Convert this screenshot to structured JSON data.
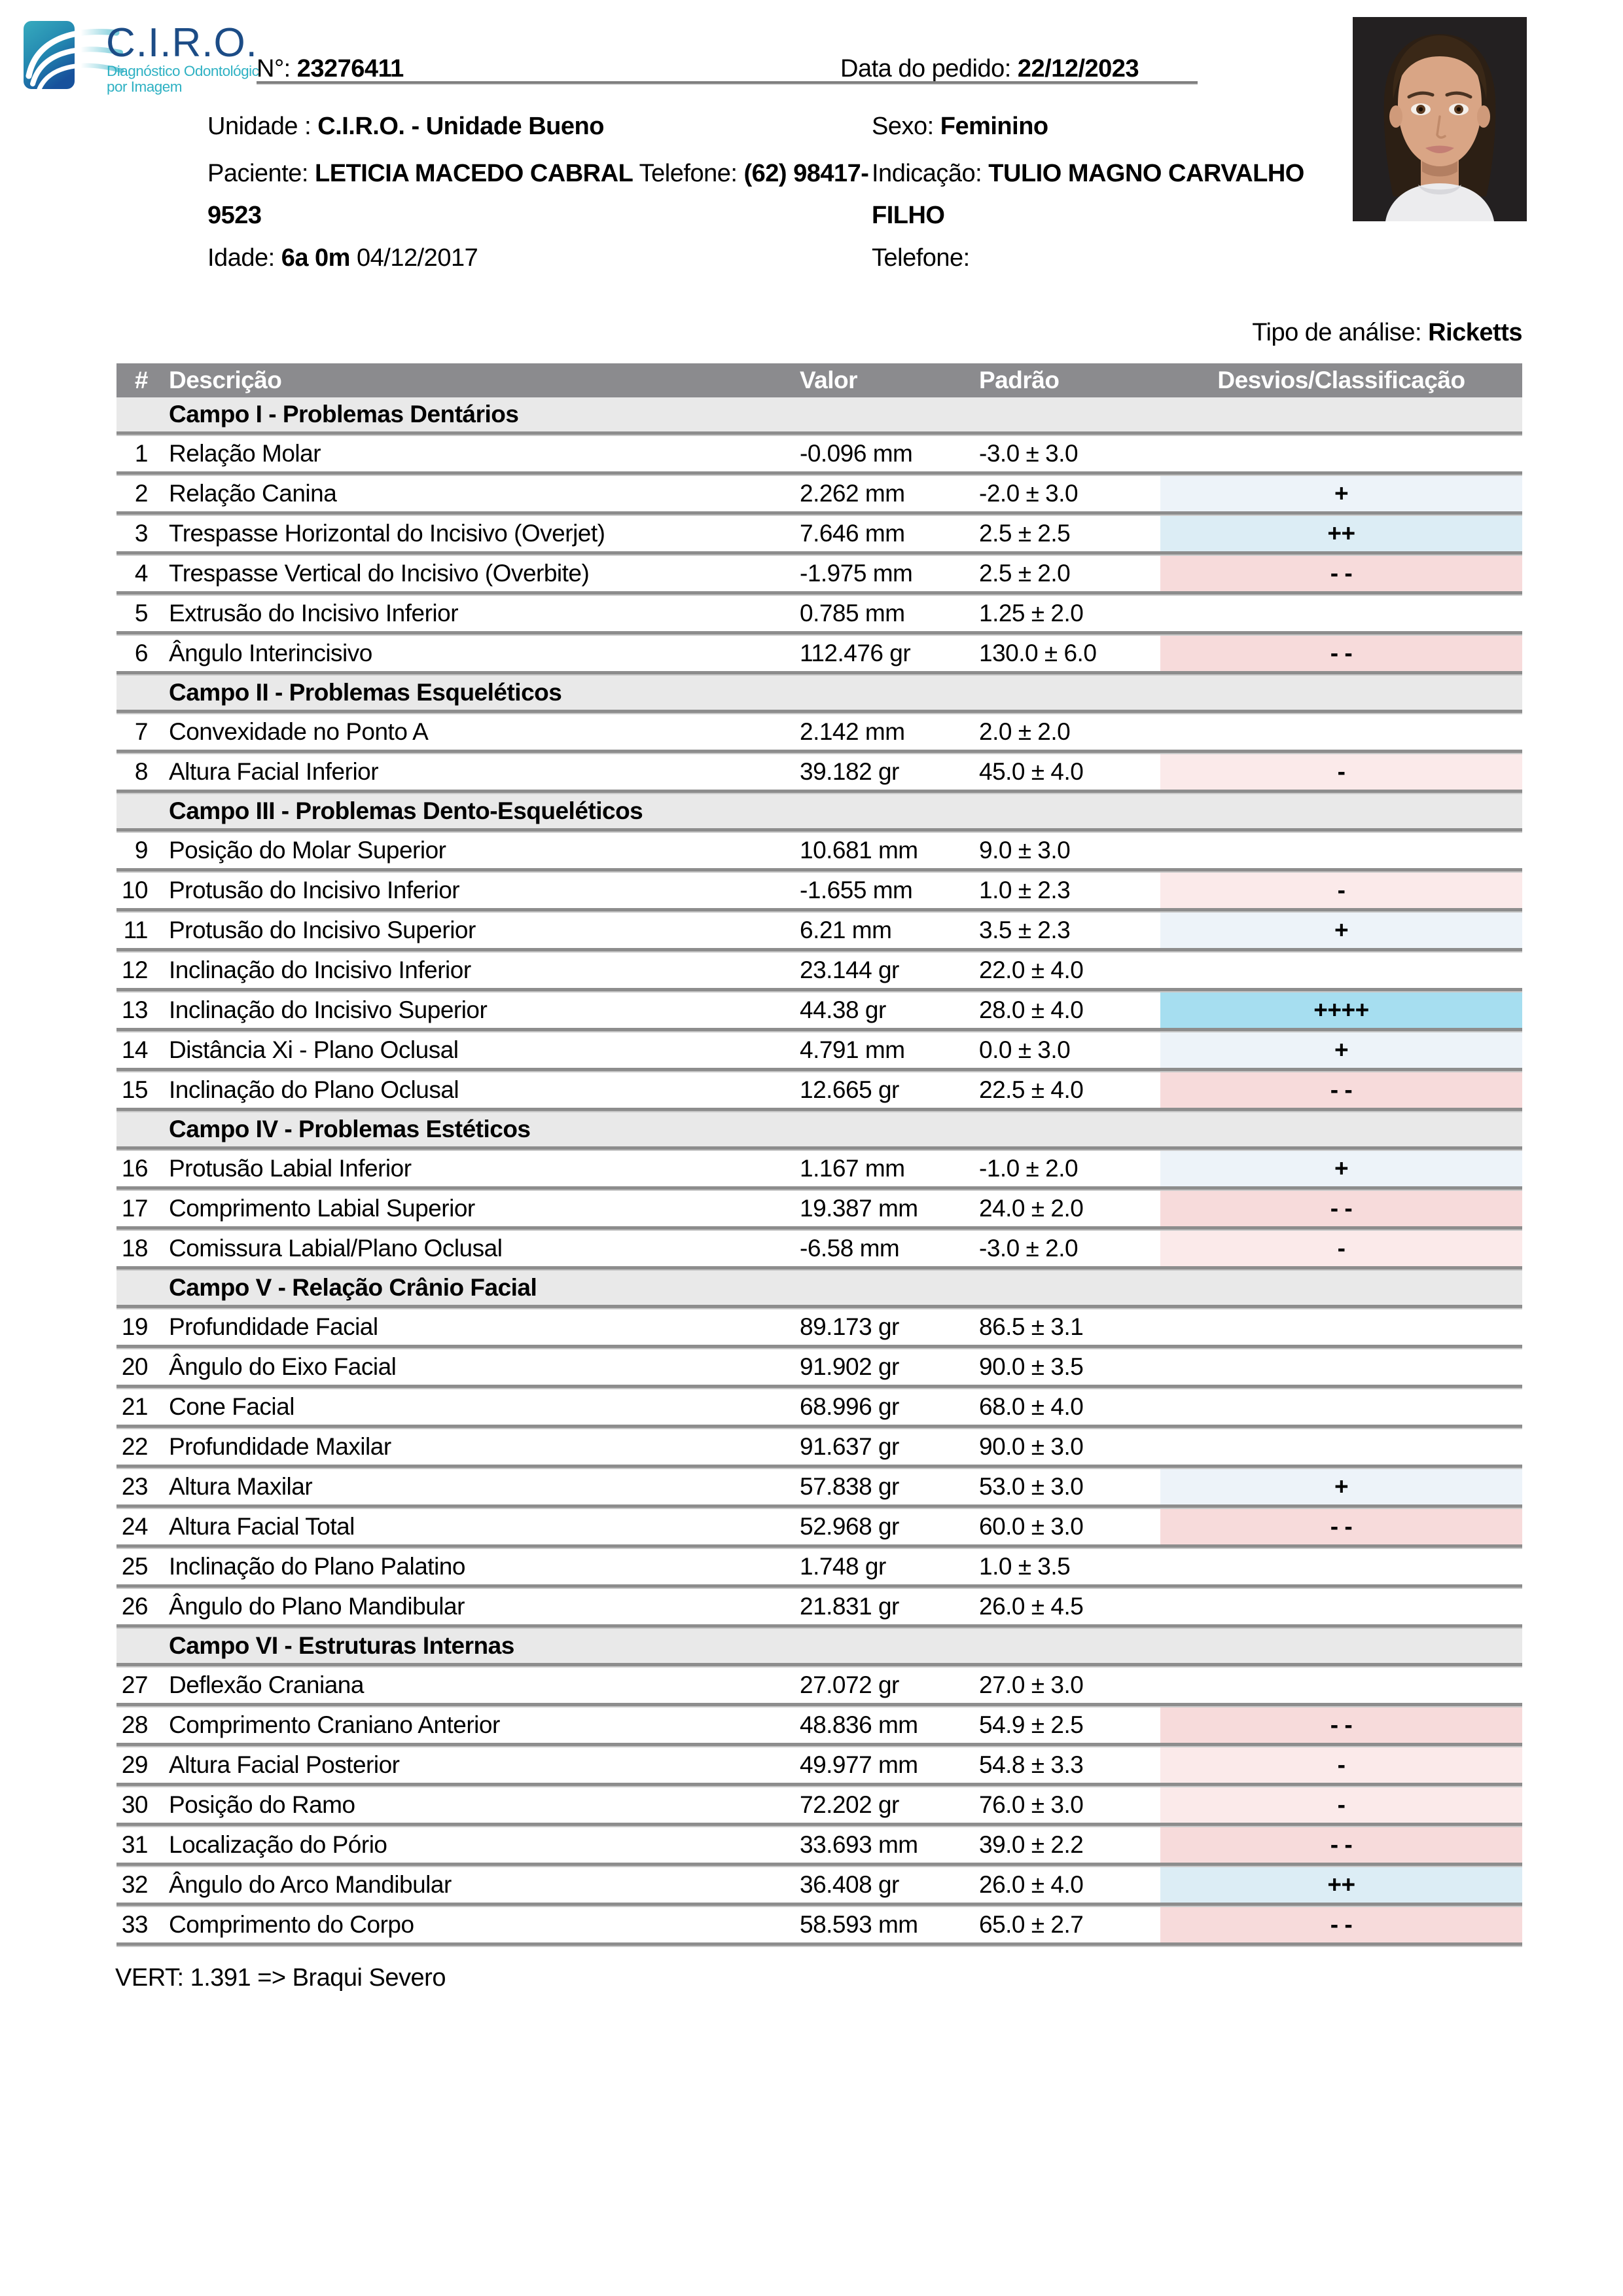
{
  "header": {
    "logo": {
      "brand": "C.I.R.O.",
      "subtitle_line1": "Diagnóstico Odontológico",
      "subtitle_line2": "por Imagem"
    },
    "order_number_label": "N°:",
    "order_number": "23276411",
    "order_date_label": "Data do pedido:",
    "order_date": "22/12/2023"
  },
  "patient": {
    "unit_label": "Unidade :",
    "unit": "C.I.R.O. - Unidade Bueno",
    "sex_label": "Sexo:",
    "sex": "Feminino",
    "name_label": "Paciente:",
    "name": "LETICIA MACEDO CABRAL",
    "phone_label": "Telefone:",
    "phone_part1": "(62) 98417-",
    "phone_part2": "9523",
    "referral_label": "Indicação:",
    "referral_line1": "TULIO MAGNO CARVALHO",
    "referral_line2": "FILHO",
    "age_label": "Idade:",
    "age": "6a 0m",
    "birth_date": "04/12/2017",
    "referral_phone_label": "Telefone:"
  },
  "analysis": {
    "type_label": "Tipo de análise:",
    "type": "Ricketts"
  },
  "table": {
    "columns": [
      "#",
      "Descrição",
      "Valor",
      "Padrão",
      "Desvios/Classificação"
    ],
    "sections": [
      {
        "title": "Campo I - Problemas Dentários",
        "rows": [
          {
            "num": "1",
            "desc": "Relação Molar",
            "valor": "-0.096 mm",
            "padrao": "-3.0 ± 3.0",
            "desvio": ""
          },
          {
            "num": "2",
            "desc": "Relação Canina",
            "valor": "2.262 mm",
            "padrao": "-2.0 ± 3.0",
            "desvio": "+"
          },
          {
            "num": "3",
            "desc": "Trespasse Horizontal do Incisivo (Overjet)",
            "valor": "7.646 mm",
            "padrao": "2.5 ± 2.5",
            "desvio": "++"
          },
          {
            "num": "4",
            "desc": "Trespasse Vertical do Incisivo (Overbite)",
            "valor": "-1.975 mm",
            "padrao": "2.5 ± 2.0",
            "desvio": "- -"
          },
          {
            "num": "5",
            "desc": "Extrusão do Incisivo Inferior",
            "valor": "0.785 mm",
            "padrao": "1.25 ± 2.0",
            "desvio": ""
          },
          {
            "num": "6",
            "desc": "Ângulo Interincisivo",
            "valor": "112.476 gr",
            "padrao": "130.0 ± 6.0",
            "desvio": "- -"
          }
        ]
      },
      {
        "title": "Campo II - Problemas Esqueléticos",
        "rows": [
          {
            "num": "7",
            "desc": "Convexidade no Ponto A",
            "valor": "2.142 mm",
            "padrao": "2.0 ± 2.0",
            "desvio": ""
          },
          {
            "num": "8",
            "desc": "Altura Facial Inferior",
            "valor": "39.182 gr",
            "padrao": "45.0 ± 4.0",
            "desvio": "-"
          }
        ]
      },
      {
        "title": "Campo III - Problemas Dento-Esqueléticos",
        "rows": [
          {
            "num": "9",
            "desc": "Posição do Molar Superior",
            "valor": "10.681 mm",
            "padrao": "9.0 ± 3.0",
            "desvio": ""
          },
          {
            "num": "10",
            "desc": "Protusão do Incisivo Inferior",
            "valor": "-1.655 mm",
            "padrao": "1.0 ± 2.3",
            "desvio": "-"
          },
          {
            "num": "11",
            "desc": "Protusão do Incisivo Superior",
            "valor": "6.21 mm",
            "padrao": "3.5 ± 2.3",
            "desvio": "+"
          },
          {
            "num": "12",
            "desc": "Inclinação do Incisivo Inferior",
            "valor": "23.144 gr",
            "padrao": "22.0 ± 4.0",
            "desvio": ""
          },
          {
            "num": "13",
            "desc": "Inclinação do Incisivo Superior",
            "valor": "44.38 gr",
            "padrao": "28.0 ± 4.0",
            "desvio": "++++"
          },
          {
            "num": "14",
            "desc": "Distância Xi - Plano Oclusal",
            "valor": "4.791 mm",
            "padrao": "0.0 ± 3.0",
            "desvio": "+"
          },
          {
            "num": "15",
            "desc": "Inclinação do Plano Oclusal",
            "valor": "12.665 gr",
            "padrao": "22.5 ± 4.0",
            "desvio": "- -"
          }
        ]
      },
      {
        "title": "Campo IV - Problemas Estéticos",
        "rows": [
          {
            "num": "16",
            "desc": "Protusão Labial Inferior",
            "valor": "1.167 mm",
            "padrao": "-1.0 ± 2.0",
            "desvio": "+"
          },
          {
            "num": "17",
            "desc": "Comprimento Labial Superior",
            "valor": "19.387 mm",
            "padrao": "24.0 ± 2.0",
            "desvio": "- -"
          },
          {
            "num": "18",
            "desc": "Comissura Labial/Plano Oclusal",
            "valor": "-6.58 mm",
            "padrao": "-3.0 ± 2.0",
            "desvio": "-"
          }
        ]
      },
      {
        "title": "Campo V - Relação Crânio Facial",
        "rows": [
          {
            "num": "19",
            "desc": "Profundidade Facial",
            "valor": "89.173 gr",
            "padrao": "86.5 ± 3.1",
            "desvio": ""
          },
          {
            "num": "20",
            "desc": "Ângulo do Eixo Facial",
            "valor": "91.902 gr",
            "padrao": "90.0 ± 3.5",
            "desvio": ""
          },
          {
            "num": "21",
            "desc": "Cone Facial",
            "valor": "68.996 gr",
            "padrao": "68.0 ± 4.0",
            "desvio": ""
          },
          {
            "num": "22",
            "desc": "Profundidade Maxilar",
            "valor": "91.637 gr",
            "padrao": "90.0 ± 3.0",
            "desvio": ""
          },
          {
            "num": "23",
            "desc": "Altura Maxilar",
            "valor": "57.838 gr",
            "padrao": "53.0 ± 3.0",
            "desvio": "+"
          },
          {
            "num": "24",
            "desc": "Altura Facial Total",
            "valor": "52.968 gr",
            "padrao": "60.0 ± 3.0",
            "desvio": "- -"
          },
          {
            "num": "25",
            "desc": "Inclinação do Plano Palatino",
            "valor": "1.748 gr",
            "padrao": "1.0 ± 3.5",
            "desvio": ""
          },
          {
            "num": "26",
            "desc": "Ângulo do Plano Mandibular",
            "valor": "21.831 gr",
            "padrao": "26.0 ± 4.5",
            "desvio": ""
          }
        ]
      },
      {
        "title": "Campo VI - Estruturas Internas",
        "rows": [
          {
            "num": "27",
            "desc": "Deflexão Craniana",
            "valor": "27.072 gr",
            "padrao": "27.0 ± 3.0",
            "desvio": ""
          },
          {
            "num": "28",
            "desc": "Comprimento Craniano Anterior",
            "valor": "48.836 mm",
            "padrao": "54.9 ± 2.5",
            "desvio": "- -"
          },
          {
            "num": "29",
            "desc": "Altura Facial Posterior",
            "valor": "49.977 mm",
            "padrao": "54.8 ± 3.3",
            "desvio": "-"
          },
          {
            "num": "30",
            "desc": "Posição do Ramo",
            "valor": "72.202 gr",
            "padrao": "76.0 ± 3.0",
            "desvio": "-"
          },
          {
            "num": "31",
            "desc": "Localização do Pório",
            "valor": "33.693 mm",
            "padrao": "39.0 ± 2.2",
            "desvio": "- -"
          },
          {
            "num": "32",
            "desc": "Ângulo do Arco Mandibular",
            "valor": "36.408 gr",
            "padrao": "26.0 ± 4.0",
            "desvio": "++"
          },
          {
            "num": "33",
            "desc": "Comprimento do Corpo",
            "valor": "58.593 mm",
            "padrao": "65.0 ± 2.7",
            "desvio": "- -"
          }
        ]
      }
    ]
  },
  "footer": {
    "vert": "VERT: 1.391 => Braqui Severo"
  },
  "colors": {
    "table_header_bg": "#8b8b8e",
    "section_bg": "#e9e9e9",
    "separator": "#8d8d8d",
    "dev_plus1": "#EDF3F9",
    "dev_plus2": "#DCEDF5",
    "dev_plus4": "#A6DEF0",
    "dev_minus1": "#FBEAEA",
    "dev_minus2": "#F7DBDB",
    "brand_navy": "#1c4c86",
    "brand_teal": "#2eb1c3"
  }
}
